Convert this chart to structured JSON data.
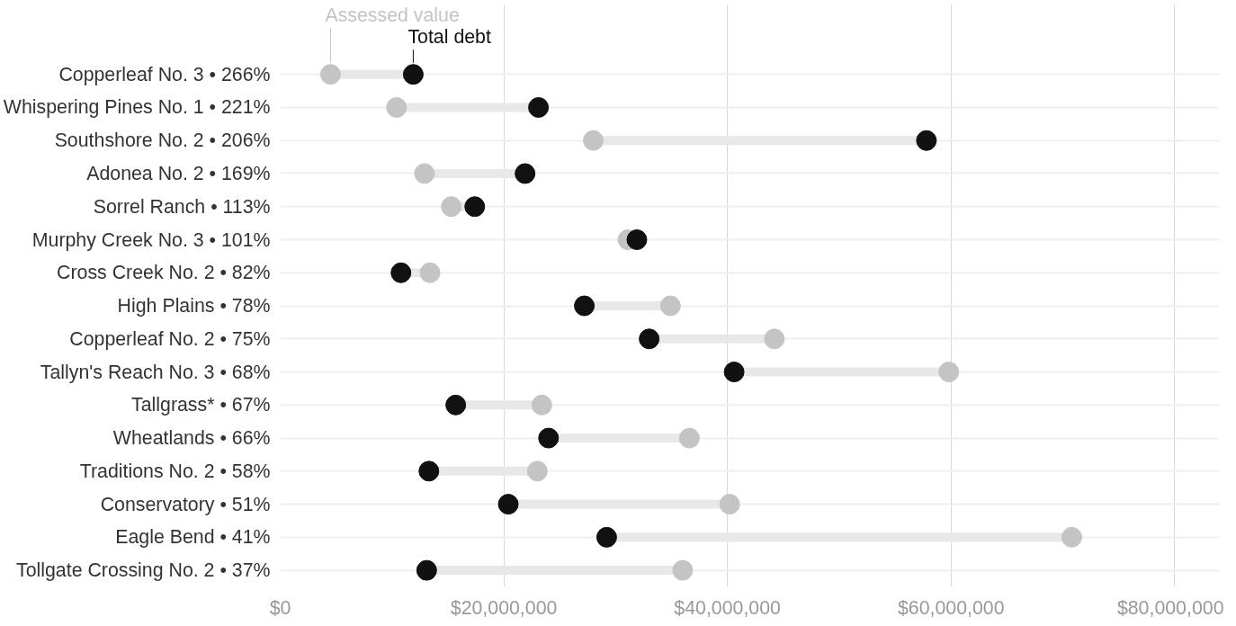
{
  "chart_data": {
    "type": "scatter",
    "orientation": "horizontal",
    "categories": [
      "Copperleaf No. 3 • 266%",
      "Whispering Pines No. 1 • 221%",
      "Southshore No. 2 • 206%",
      "Adonea No. 2 • 169%",
      "Sorrel Ranch • 113%",
      "Murphy Creek No. 3 • 101%",
      "Cross Creek No. 2 • 82%",
      "High Plains • 78%",
      "Copperleaf No. 2 • 75%",
      "Tallyn's Reach No. 3 • 68%",
      "Tallgrass* • 67%",
      "Wheatlands • 66%",
      "Traditions No. 2 • 58%",
      "Conservatory • 51%",
      "Eagle Bend • 41%",
      "Tollgate Crossing No. 2 • 37%"
    ],
    "series": [
      {
        "name": "Assessed value",
        "color": "#c4c4c4",
        "values": [
          4500000,
          10400000,
          28000000,
          12900000,
          15300000,
          31100000,
          13400000,
          34900000,
          44200000,
          59800000,
          23400000,
          36600000,
          23000000,
          40200000,
          70800000,
          36000000
        ]
      },
      {
        "name": "Total debt",
        "color": "#111111",
        "values": [
          11900000,
          23100000,
          57800000,
          21900000,
          17400000,
          31900000,
          10800000,
          27200000,
          33000000,
          40600000,
          15700000,
          24000000,
          13300000,
          20400000,
          29200000,
          13100000
        ]
      }
    ],
    "xlim": [
      0,
      84000000
    ],
    "xticks": [
      {
        "value": 0,
        "label": "$0"
      },
      {
        "value": 20000000,
        "label": "$20,000,000"
      },
      {
        "value": 40000000,
        "label": "$40,000,000"
      },
      {
        "value": 60000000,
        "label": "$60,000,000"
      },
      {
        "value": 80000000,
        "label": "$80,000,000"
      }
    ],
    "grid": true,
    "marker": "circle"
  }
}
